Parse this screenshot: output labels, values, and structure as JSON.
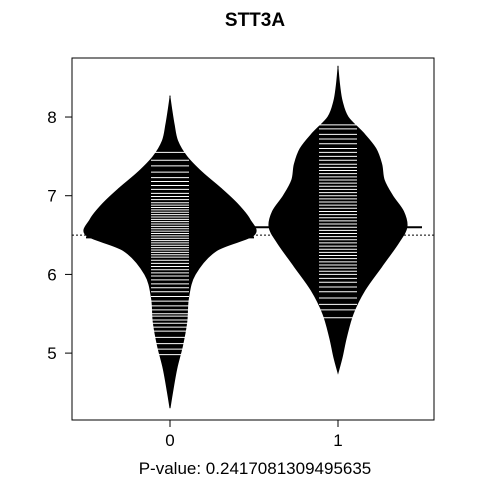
{
  "chart_data": {
    "type": "beanplot",
    "title": "STT3A",
    "xlabel": "P-value: 0.2417081309495635",
    "ylabel": "",
    "categories": [
      "0",
      "1"
    ],
    "x_ticks": [
      "0",
      "1"
    ],
    "y_ticks": [
      "5",
      "6",
      "7",
      "8"
    ],
    "ylim": [
      4.15,
      8.75
    ],
    "overall_mean": 6.5,
    "grid": false,
    "legend": "none",
    "series": [
      {
        "category": "0",
        "group_mean": 6.47,
        "range": [
          4.3,
          8.25
        ],
        "density_profile": [
          [
            4.3,
            0.0
          ],
          [
            4.5,
            0.03
          ],
          [
            4.8,
            0.08
          ],
          [
            5.1,
            0.15
          ],
          [
            5.4,
            0.2
          ],
          [
            5.7,
            0.22
          ],
          [
            6.0,
            0.3
          ],
          [
            6.3,
            0.55
          ],
          [
            6.5,
            1.0
          ],
          [
            6.7,
            0.95
          ],
          [
            6.9,
            0.8
          ],
          [
            7.1,
            0.6
          ],
          [
            7.3,
            0.38
          ],
          [
            7.5,
            0.2
          ],
          [
            7.7,
            0.09
          ],
          [
            7.9,
            0.05
          ],
          [
            8.1,
            0.02
          ],
          [
            8.25,
            0.0
          ]
        ],
        "observations": [
          4.98,
          5.05,
          5.12,
          5.2,
          5.28,
          5.33,
          5.38,
          5.42,
          5.47,
          5.5,
          5.55,
          5.6,
          5.66,
          5.72,
          5.78,
          5.83,
          5.88,
          5.93,
          5.98,
          6.02,
          6.06,
          6.1,
          6.14,
          6.18,
          6.22,
          6.25,
          6.28,
          6.31,
          6.34,
          6.37,
          6.4,
          6.43,
          6.46,
          6.49,
          6.52,
          6.55,
          6.58,
          6.61,
          6.64,
          6.67,
          6.7,
          6.73,
          6.76,
          6.79,
          6.82,
          6.85,
          6.88,
          6.91,
          6.95,
          6.99,
          7.03,
          7.08,
          7.13,
          7.18,
          7.23,
          7.3,
          7.38,
          7.45,
          7.55
        ]
      },
      {
        "category": "1",
        "group_mean": 6.6,
        "range": [
          4.75,
          8.62
        ],
        "density_profile": [
          [
            4.75,
            0.0
          ],
          [
            4.95,
            0.05
          ],
          [
            5.2,
            0.1
          ],
          [
            5.5,
            0.18
          ],
          [
            5.8,
            0.32
          ],
          [
            6.1,
            0.52
          ],
          [
            6.4,
            0.72
          ],
          [
            6.6,
            0.82
          ],
          [
            6.8,
            0.78
          ],
          [
            7.0,
            0.65
          ],
          [
            7.2,
            0.55
          ],
          [
            7.4,
            0.52
          ],
          [
            7.6,
            0.45
          ],
          [
            7.8,
            0.3
          ],
          [
            8.0,
            0.12
          ],
          [
            8.2,
            0.05
          ],
          [
            8.4,
            0.02
          ],
          [
            8.62,
            0.0
          ]
        ],
        "observations": [
          5.45,
          5.55,
          5.62,
          5.7,
          5.78,
          5.84,
          5.9,
          5.95,
          6.0,
          6.04,
          6.08,
          6.12,
          6.16,
          6.2,
          6.24,
          6.28,
          6.32,
          6.36,
          6.4,
          6.44,
          6.48,
          6.52,
          6.56,
          6.6,
          6.64,
          6.68,
          6.72,
          6.76,
          6.8,
          6.84,
          6.88,
          6.92,
          6.96,
          7.0,
          7.04,
          7.08,
          7.12,
          7.16,
          7.2,
          7.24,
          7.28,
          7.32,
          7.36,
          7.4,
          7.45,
          7.5,
          7.55,
          7.6,
          7.66,
          7.72,
          7.78,
          7.85,
          7.9
        ]
      }
    ],
    "colors": {
      "bean_fill": "#000000",
      "bean_outline": "#000000",
      "observation_lines": "#ffffff",
      "mean_lines": "#000000",
      "axis": "#000000",
      "background": "#ffffff"
    }
  }
}
